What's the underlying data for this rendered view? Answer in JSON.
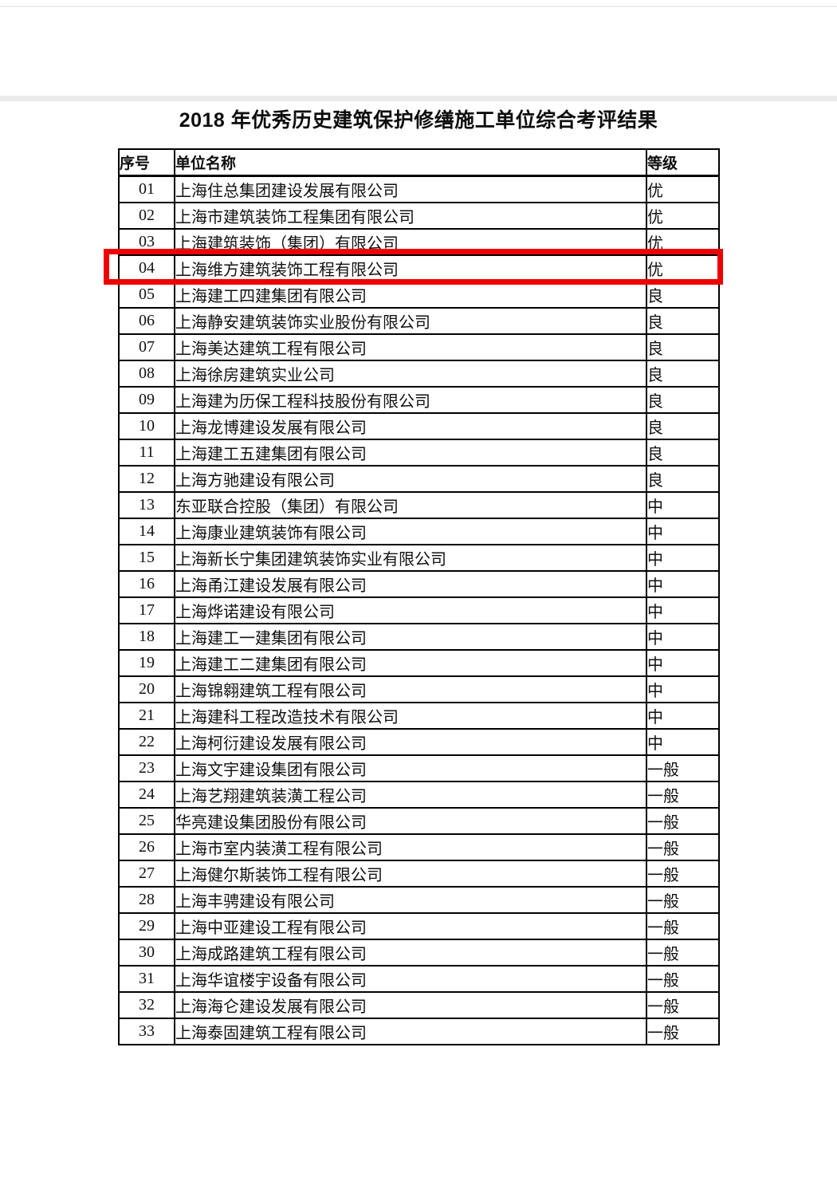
{
  "page": {
    "title": "2018 年优秀历史建筑保护修缮施工单位综合考评结果"
  },
  "table": {
    "headers": [
      "序号",
      "单位名称",
      "等级"
    ],
    "highlight_color": "#ee0000",
    "rows": [
      {
        "no": "01",
        "name": "上海住总集团建设发展有限公司",
        "grade": "优",
        "highlighted": false
      },
      {
        "no": "02",
        "name": "上海市建筑装饰工程集团有限公司",
        "grade": "优",
        "highlighted": false
      },
      {
        "no": "03",
        "name": "上海建筑装饰（集团）有限公司",
        "grade": "优",
        "highlighted": false
      },
      {
        "no": "04",
        "name": "上海维方建筑装饰工程有限公司",
        "grade": "优",
        "highlighted": true
      },
      {
        "no": "05",
        "name": "上海建工四建集团有限公司",
        "grade": "良",
        "highlighted": false
      },
      {
        "no": "06",
        "name": "上海静安建筑装饰实业股份有限公司",
        "grade": "良",
        "highlighted": false
      },
      {
        "no": "07",
        "name": "上海美达建筑工程有限公司",
        "grade": "良",
        "highlighted": false
      },
      {
        "no": "08",
        "name": "上海徐房建筑实业公司",
        "grade": "良",
        "highlighted": false
      },
      {
        "no": "09",
        "name": "上海建为历保工程科技股份有限公司",
        "grade": "良",
        "highlighted": false
      },
      {
        "no": "10",
        "name": "上海龙博建设发展有限公司",
        "grade": "良",
        "highlighted": false
      },
      {
        "no": "11",
        "name": "上海建工五建集团有限公司",
        "grade": "良",
        "highlighted": false
      },
      {
        "no": "12",
        "name": "上海方驰建设有限公司",
        "grade": "良",
        "highlighted": false
      },
      {
        "no": "13",
        "name": "东亚联合控股（集团）有限公司",
        "grade": "中",
        "highlighted": false
      },
      {
        "no": "14",
        "name": "上海康业建筑装饰有限公司",
        "grade": "中",
        "highlighted": false
      },
      {
        "no": "15",
        "name": "上海新长宁集团建筑装饰实业有限公司",
        "grade": "中",
        "highlighted": false
      },
      {
        "no": "16",
        "name": "上海甬江建设发展有限公司",
        "grade": "中",
        "highlighted": false
      },
      {
        "no": "17",
        "name": "上海烨诺建设有限公司",
        "grade": "中",
        "highlighted": false
      },
      {
        "no": "18",
        "name": "上海建工一建集团有限公司",
        "grade": "中",
        "highlighted": false
      },
      {
        "no": "19",
        "name": "上海建工二建集团有限公司",
        "grade": "中",
        "highlighted": false
      },
      {
        "no": "20",
        "name": "上海锦翱建筑工程有限公司",
        "grade": "中",
        "highlighted": false
      },
      {
        "no": "21",
        "name": "上海建科工程改造技术有限公司",
        "grade": "中",
        "highlighted": false
      },
      {
        "no": "22",
        "name": "上海柯衍建设发展有限公司",
        "grade": "中",
        "highlighted": false
      },
      {
        "no": "23",
        "name": "上海文宇建设集团有限公司",
        "grade": "一般",
        "highlighted": false
      },
      {
        "no": "24",
        "name": "上海艺翔建筑装潢工程公司",
        "grade": "一般",
        "highlighted": false
      },
      {
        "no": "25",
        "name": "华亮建设集团股份有限公司",
        "grade": "一般",
        "highlighted": false
      },
      {
        "no": "26",
        "name": "上海市室内装潢工程有限公司",
        "grade": "一般",
        "highlighted": false
      },
      {
        "no": "27",
        "name": "上海健尔斯装饰工程有限公司",
        "grade": "一般",
        "highlighted": false
      },
      {
        "no": "28",
        "name": "上海丰骋建设有限公司",
        "grade": "一般",
        "highlighted": false
      },
      {
        "no": "29",
        "name": "上海中亚建设工程有限公司",
        "grade": "一般",
        "highlighted": false
      },
      {
        "no": "30",
        "name": "上海成路建筑工程有限公司",
        "grade": "一般",
        "highlighted": false
      },
      {
        "no": "31",
        "name": "上海华谊楼宇设备有限公司",
        "grade": "一般",
        "highlighted": false
      },
      {
        "no": "32",
        "name": "上海海仑建设发展有限公司",
        "grade": "一般",
        "highlighted": false
      },
      {
        "no": "33",
        "name": "上海泰固建筑工程有限公司",
        "grade": "一般",
        "highlighted": false
      }
    ]
  }
}
